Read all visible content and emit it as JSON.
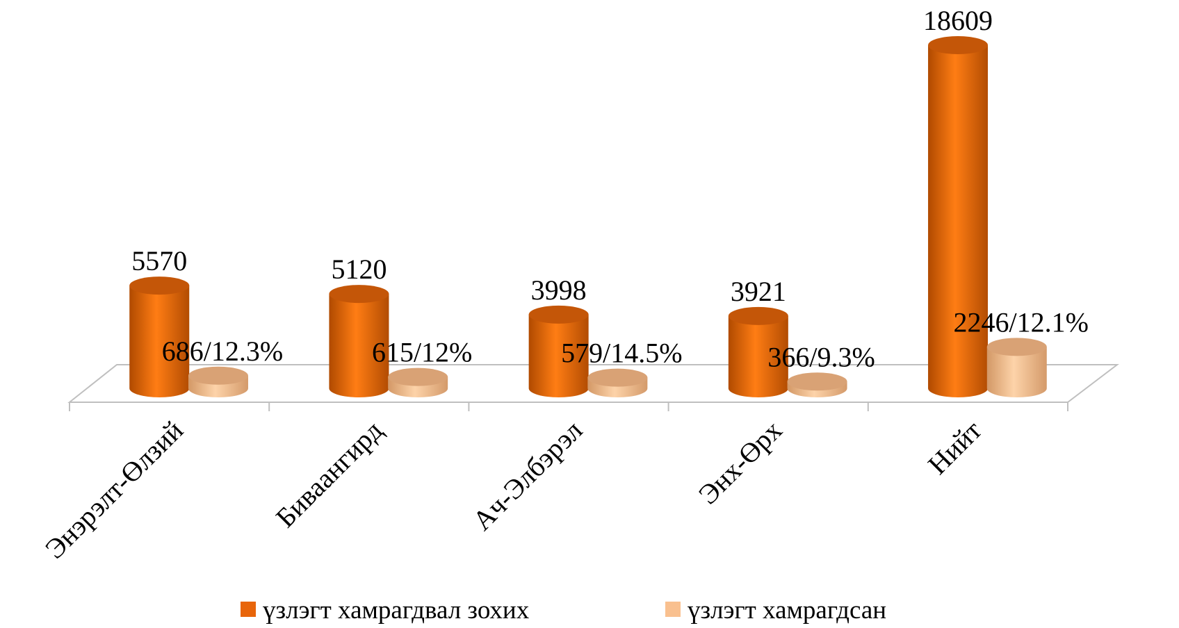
{
  "chart_data": {
    "type": "bar",
    "categories": [
      "Энэрэлт-Өлзий",
      "Биваангирд",
      "Ач-Элбэрэл",
      "Энх-Өрх",
      "Нийт"
    ],
    "series": [
      {
        "name": "үзлэгт хамрагдвал зохих",
        "color": "#e8650a",
        "values": [
          5570,
          5120,
          3998,
          3921,
          18609
        ]
      },
      {
        "name": "үзлэгт хамрагдсан",
        "color": "#f9c08f",
        "values": [
          686,
          615,
          579,
          366,
          2246
        ],
        "value_labels": [
          "686/12.3%",
          "615/12%",
          "579/14.5%",
          "366/9.3%",
          "2246/12.1%"
        ]
      }
    ]
  }
}
